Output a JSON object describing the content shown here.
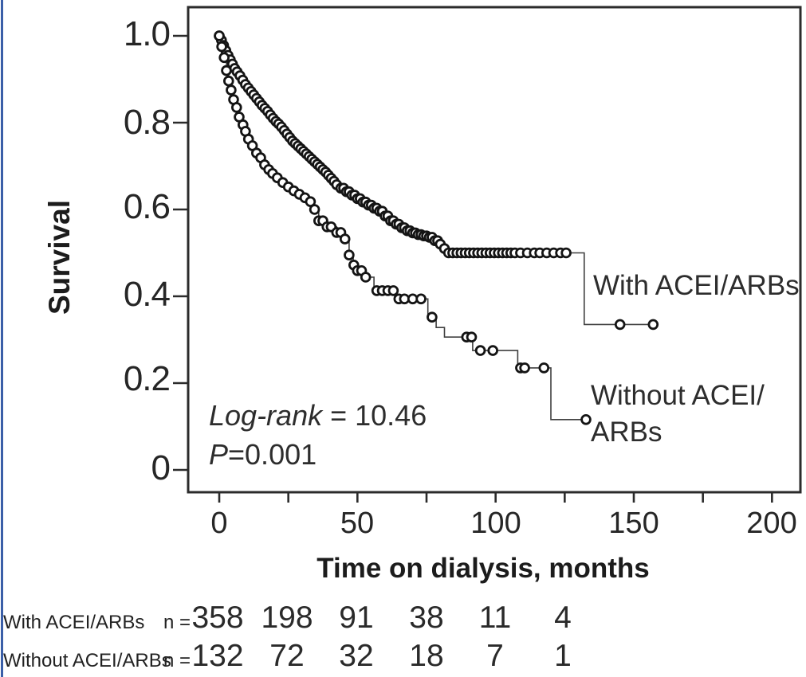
{
  "figure": {
    "type_note": "Kaplan-Meier survival plot",
    "colors": {
      "background": "#ffffff",
      "axis": "#2b2b2b",
      "curve_line": "#3f3f3f",
      "marker_stroke": "#141414",
      "marker_fill": "#ffffff",
      "text": "#1f1f1f",
      "left_border_accent": "#3b5fa8"
    }
  },
  "chart_data": {
    "type": "line",
    "subtype": "kaplan-meier-step",
    "title": "",
    "xlabel": "Time on dialysis, months",
    "ylabel": "Survival",
    "xlim": [
      -11.5,
      210.5
    ],
    "ylim": [
      -0.051,
      1.066
    ],
    "grid": false,
    "legend_position": "labels-inside-plot",
    "x_tick_labels": [
      "0",
      "50",
      "100",
      "150",
      "200"
    ],
    "x_tick_months_major": [
      0,
      50,
      100,
      150,
      200
    ],
    "x_tick_months_all": [
      0,
      25,
      50,
      75,
      100,
      125,
      150,
      175,
      200
    ],
    "y_tick_labels": [
      "1.0",
      "0.8",
      "0.6",
      "0.4",
      "0.2",
      "0"
    ],
    "y_tick_values": [
      1.0,
      0.8,
      0.6,
      0.4,
      0.2,
      0
    ],
    "series": [
      {
        "name": "With ACEI/ARBs",
        "label_lines": [
          "With ACEI/ARBs"
        ],
        "steps": [
          [
            0,
            1.0
          ],
          [
            0.8,
            0.99
          ],
          [
            1.6,
            0.978
          ],
          [
            2.4,
            0.966
          ],
          [
            3.2,
            0.955
          ],
          [
            4,
            0.945
          ],
          [
            4.8,
            0.935
          ],
          [
            5.6,
            0.925
          ],
          [
            6.5,
            0.917
          ],
          [
            7.5,
            0.908
          ],
          [
            8.5,
            0.898
          ],
          [
            9.5,
            0.888
          ],
          [
            10.5,
            0.88
          ],
          [
            11.5,
            0.872
          ],
          [
            12.5,
            0.864
          ],
          [
            13.5,
            0.856
          ],
          [
            14.5,
            0.848
          ],
          [
            15.5,
            0.84
          ],
          [
            16.5,
            0.833
          ],
          [
            17.5,
            0.826
          ],
          [
            18.5,
            0.818
          ],
          [
            19.5,
            0.81
          ],
          [
            20.5,
            0.803
          ],
          [
            21.5,
            0.797
          ],
          [
            22.5,
            0.79
          ],
          [
            23.5,
            0.782
          ],
          [
            24.5,
            0.774
          ],
          [
            25.5,
            0.766
          ],
          [
            26.5,
            0.758
          ],
          [
            27.5,
            0.752
          ],
          [
            28.5,
            0.746
          ],
          [
            29.5,
            0.74
          ],
          [
            30.5,
            0.734
          ],
          [
            31.5,
            0.728
          ],
          [
            32.5,
            0.722
          ],
          [
            33.5,
            0.716
          ],
          [
            34.5,
            0.71
          ],
          [
            35.5,
            0.704
          ],
          [
            36.5,
            0.698
          ],
          [
            37.5,
            0.692
          ],
          [
            38.5,
            0.686
          ],
          [
            39.5,
            0.679
          ],
          [
            40.5,
            0.672
          ],
          [
            41.5,
            0.665
          ],
          [
            42.5,
            0.657
          ],
          [
            44,
            0.649
          ],
          [
            46,
            0.641
          ],
          [
            48,
            0.633
          ],
          [
            50,
            0.625
          ],
          [
            52,
            0.617
          ],
          [
            54,
            0.61
          ],
          [
            56,
            0.603
          ],
          [
            58,
            0.596
          ],
          [
            60,
            0.585
          ],
          [
            62,
            0.574
          ],
          [
            64,
            0.566
          ],
          [
            66,
            0.558
          ],
          [
            68,
            0.551
          ],
          [
            70,
            0.546
          ],
          [
            72,
            0.542
          ],
          [
            74,
            0.539
          ],
          [
            76,
            0.536
          ],
          [
            78,
            0.528
          ],
          [
            80,
            0.52
          ],
          [
            81.5,
            0.51
          ],
          [
            83,
            0.5
          ],
          [
            132,
            0.5
          ],
          [
            132.05,
            0.335
          ],
          [
            157,
            0.335
          ]
        ],
        "censor_months": [
          0,
          0.8,
          1.6,
          2.4,
          3.2,
          4,
          4.8,
          5.6,
          6.5,
          7.5,
          8.5,
          9.5,
          10.5,
          11.5,
          12.5,
          13.5,
          14.5,
          15.5,
          16.5,
          17.5,
          18.5,
          19.5,
          20.5,
          21.5,
          22.5,
          23.5,
          24.5,
          25.5,
          26.5,
          27.5,
          28.5,
          29.5,
          30.5,
          31.5,
          32.5,
          33.5,
          34.5,
          35.5,
          36.5,
          37.5,
          38.5,
          39.5,
          40.5,
          41.5,
          42.5,
          44,
          45,
          46,
          47,
          48,
          49,
          50,
          51,
          52,
          53,
          54,
          55,
          56,
          57,
          58,
          59,
          60,
          61,
          62,
          63,
          64,
          65,
          66,
          67,
          68,
          69,
          70,
          71,
          72,
          73,
          74,
          75,
          76,
          77,
          78,
          79,
          80,
          81.5,
          83,
          84.5,
          86,
          87.5,
          89,
          90.5,
          92,
          93.5,
          95,
          96.5,
          98,
          99.5,
          101,
          102.5,
          104,
          105.5,
          107,
          109,
          111.5,
          114,
          116,
          118.5,
          121,
          123.5,
          125.5,
          145,
          157
        ]
      },
      {
        "name": "Without ACEI/ARBs",
        "label_lines": [
          "Without ACEI/",
          "ARBs"
        ],
        "steps": [
          [
            0,
            1.0
          ],
          [
            0.9,
            0.975
          ],
          [
            1.8,
            0.95
          ],
          [
            2.6,
            0.92
          ],
          [
            3.4,
            0.896
          ],
          [
            4.3,
            0.875
          ],
          [
            5.2,
            0.853
          ],
          [
            6.3,
            0.835
          ],
          [
            7.2,
            0.813
          ],
          [
            8.6,
            0.795
          ],
          [
            9.5,
            0.78
          ],
          [
            10.6,
            0.762
          ],
          [
            12,
            0.747
          ],
          [
            13.5,
            0.73
          ],
          [
            15,
            0.719
          ],
          [
            16.4,
            0.703
          ],
          [
            17.9,
            0.692
          ],
          [
            19.3,
            0.683
          ],
          [
            21,
            0.673
          ],
          [
            23,
            0.662
          ],
          [
            25,
            0.652
          ],
          [
            27,
            0.643
          ],
          [
            29,
            0.635
          ],
          [
            31,
            0.627
          ],
          [
            33,
            0.618
          ],
          [
            34.5,
            0.6
          ],
          [
            36,
            0.574
          ],
          [
            39,
            0.56
          ],
          [
            42.5,
            0.547
          ],
          [
            45.5,
            0.532
          ],
          [
            47,
            0.495
          ],
          [
            48.5,
            0.472
          ],
          [
            50,
            0.459
          ],
          [
            53,
            0.444
          ],
          [
            56,
            0.413
          ],
          [
            64,
            0.394
          ],
          [
            75.5,
            0.352
          ],
          [
            78.5,
            0.328
          ],
          [
            81.5,
            0.306
          ],
          [
            91.7,
            0.275
          ],
          [
            108,
            0.235
          ],
          [
            120,
            0.116
          ],
          [
            134.5,
            0.116
          ]
        ],
        "censor_months": [
          0,
          0.9,
          1.8,
          2.6,
          3.4,
          4.3,
          5.2,
          6.3,
          7.2,
          8.6,
          9.5,
          10.6,
          12,
          13.5,
          15,
          16.4,
          17.9,
          19.3,
          21,
          23,
          25,
          27,
          29,
          31,
          33,
          34.5,
          36,
          37.5,
          39,
          40.5,
          42.5,
          44,
          45.5,
          47,
          48.7,
          50,
          51.5,
          53,
          57,
          59,
          61,
          63,
          65,
          67,
          70,
          73,
          77,
          89.5,
          91.3,
          94.5,
          99,
          109,
          110.5,
          117.5,
          132.7
        ]
      }
    ],
    "annotations": {
      "logrank_label": "Log-rank",
      "logrank_value": " = 10.46",
      "p_label": "P",
      "p_value": "=0.001"
    }
  },
  "at_risk": {
    "n_prefix": "n =",
    "time_points_months": [
      0,
      25,
      50,
      75,
      100,
      125
    ],
    "rows": [
      {
        "label": "With ACEI/ARBs",
        "counts": [
          "358",
          "198",
          "91",
          "38",
          "11",
          "4"
        ]
      },
      {
        "label": "Without ACEI/ARBs",
        "counts": [
          "132",
          "72",
          "32",
          "18",
          "7",
          "1"
        ]
      }
    ]
  }
}
